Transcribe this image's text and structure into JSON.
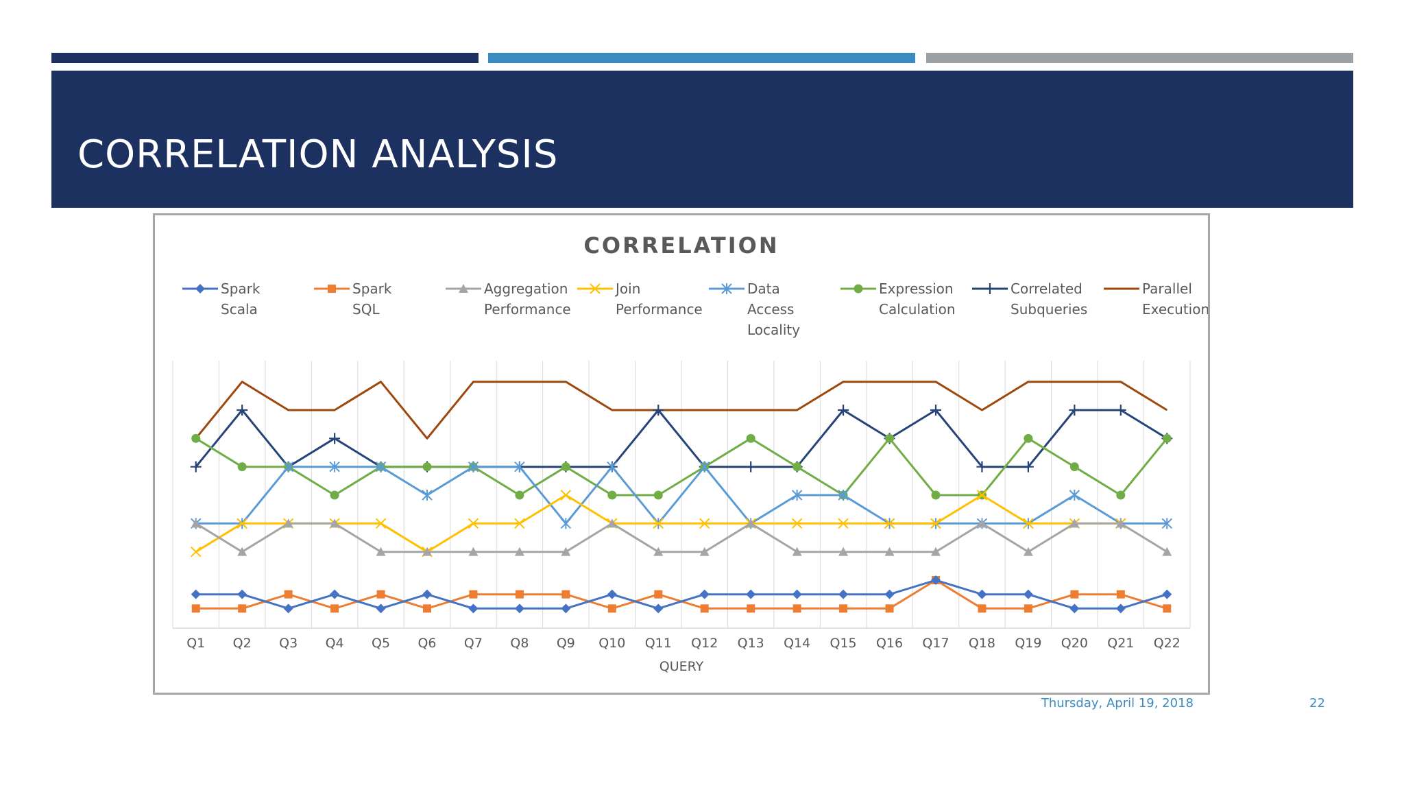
{
  "slide": {
    "title": "CORRELATION ANALYSIS",
    "date": "Thursday, April 19, 2018",
    "page_number": "22",
    "colors": {
      "header": "#1d3160",
      "bar_dark": "#1d3160",
      "bar_blue": "#3a8cc0",
      "bar_gray": "#9aa0a4",
      "footer_text": "#3a8cc0"
    }
  },
  "chart_data": {
    "type": "line",
    "title": "CORRELATION",
    "xlabel": "QUERY",
    "ylabel": "",
    "ylim": [
      -0.5,
      8.5
    ],
    "grid": "vertical",
    "legend_position": "top",
    "categories": [
      "Q1",
      "Q2",
      "Q3",
      "Q4",
      "Q5",
      "Q6",
      "Q7",
      "Q8",
      "Q9",
      "Q10",
      "Q11",
      "Q12",
      "Q13",
      "Q14",
      "Q15",
      "Q16",
      "Q17",
      "Q18",
      "Q19",
      "Q20",
      "Q21",
      "Q22"
    ],
    "series": [
      {
        "name": "Spark Scala",
        "legend_lines": [
          "Spark",
          "Scala"
        ],
        "color": "#4472c4",
        "marker": "diamond",
        "values": [
          0.5,
          0.5,
          0,
          0.5,
          0,
          0.5,
          0,
          0,
          0,
          0.5,
          0,
          0.5,
          0.5,
          0.5,
          0.5,
          0.5,
          1,
          0.5,
          0.5,
          0,
          0,
          0.5
        ]
      },
      {
        "name": "Spark SQL",
        "legend_lines": [
          "Spark",
          "SQL"
        ],
        "color": "#ed7d31",
        "marker": "square",
        "values": [
          0,
          0,
          0.5,
          0,
          0.5,
          0,
          0.5,
          0.5,
          0.5,
          0,
          0.5,
          0,
          0,
          0,
          0,
          0,
          1,
          0,
          0,
          0.5,
          0.5,
          0
        ]
      },
      {
        "name": "Aggregation Performance",
        "legend_lines": [
          "Aggregation",
          "Performance"
        ],
        "color": "#a5a5a5",
        "marker": "triangle",
        "values": [
          3,
          2,
          3,
          3,
          2,
          2,
          2,
          2,
          2,
          3,
          2,
          2,
          3,
          2,
          2,
          2,
          2,
          3,
          2,
          3,
          3,
          2
        ]
      },
      {
        "name": "Join Performance",
        "legend_lines": [
          "Join",
          "Performance"
        ],
        "color": "#ffc000",
        "marker": "x",
        "values": [
          2,
          3,
          3,
          3,
          3,
          2,
          3,
          3,
          4,
          3,
          3,
          3,
          3,
          3,
          3,
          3,
          3,
          4,
          3,
          3,
          3,
          null
        ]
      },
      {
        "name": "Data Access Locality",
        "legend_lines": [
          "Data",
          "Access",
          "Locality"
        ],
        "color": "#5b9bd5",
        "marker": "star",
        "values": [
          3,
          3,
          5,
          5,
          5,
          4,
          5,
          5,
          3,
          5,
          3,
          5,
          3,
          4,
          4,
          3,
          3,
          3,
          3,
          4,
          3,
          3
        ]
      },
      {
        "name": "Expression Calculation",
        "legend_lines": [
          "Expression",
          "Calculation"
        ],
        "color": "#70ad47",
        "marker": "circle",
        "values": [
          6,
          5,
          5,
          4,
          5,
          5,
          5,
          4,
          5,
          4,
          4,
          5,
          6,
          5,
          4,
          6,
          4,
          4,
          6,
          5,
          4,
          6
        ]
      },
      {
        "name": "Correlated Subqueries",
        "legend_lines": [
          "Correlated",
          "Subqueries"
        ],
        "color": "#264478",
        "marker": "plus",
        "values": [
          5,
          7,
          5,
          6,
          5,
          5,
          5,
          5,
          5,
          5,
          7,
          5,
          5,
          5,
          7,
          6,
          7,
          5,
          5,
          7,
          7,
          6
        ]
      },
      {
        "name": "Parallel Execution",
        "legend_lines": [
          "Parallel",
          "Execution"
        ],
        "color": "#9e480e",
        "marker": "none",
        "values": [
          6,
          8,
          7,
          7,
          8,
          6,
          8,
          8,
          8,
          7,
          7,
          7,
          7,
          7,
          8,
          8,
          8,
          7,
          8,
          8,
          8,
          7
        ]
      }
    ]
  }
}
